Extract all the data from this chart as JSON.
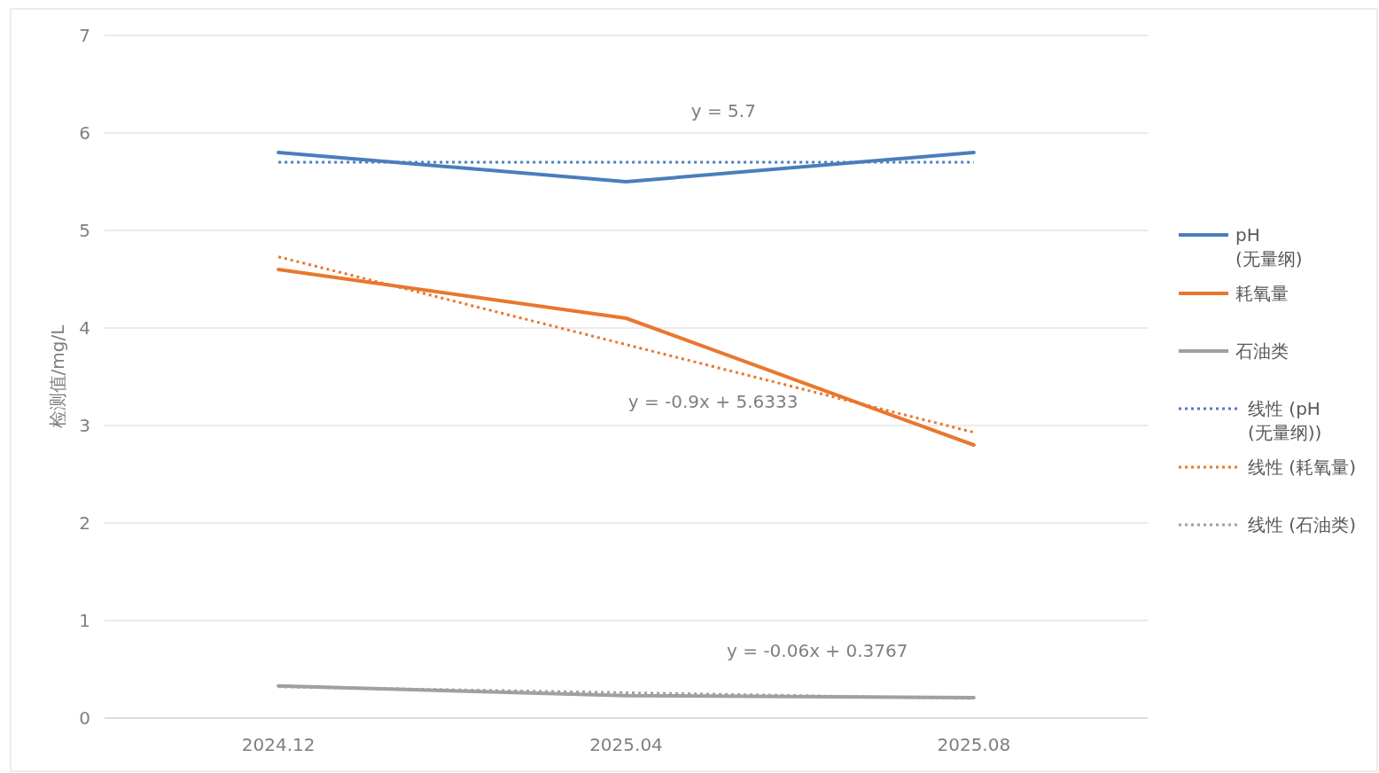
{
  "chart_data": {
    "type": "line",
    "ylabel": "检测值/mg/L",
    "categories": [
      "2024.12",
      "2025.04",
      "2025.08"
    ],
    "series": [
      {
        "name": "pH (无量纲)",
        "color": "#4a7ebb",
        "values": [
          5.8,
          5.5,
          5.8
        ]
      },
      {
        "name": "耗氧量",
        "color": "#e8772e",
        "values": [
          4.6,
          4.1,
          2.8
        ]
      },
      {
        "name": "石油类",
        "color": "#a0a0a0",
        "values": [
          0.33,
          0.23,
          0.21
        ]
      },
      {
        "name": "线性 (pH (无量纲))",
        "color": "#4a7ebb",
        "values": [
          5.7,
          5.7,
          5.7
        ],
        "line_style": "dotted"
      },
      {
        "name": "线性 (耗氧量)",
        "color": "#e8772e",
        "values": [
          4.73,
          3.83,
          2.93
        ],
        "line_style": "dotted"
      },
      {
        "name": "线性 (石油类)",
        "color": "#a0a0a0",
        "values": [
          0.32,
          0.26,
          0.2
        ],
        "line_style": "dotted"
      }
    ],
    "annotations": [
      "y = 5.7",
      "y = -0.9x + 5.6333",
      "y = -0.06x + 0.3767"
    ],
    "ylim": [
      0,
      7
    ],
    "yticks": [
      0,
      1,
      2,
      3,
      4,
      5,
      6,
      7
    ],
    "grid": "y",
    "legend": "right",
    "line_style": "solid"
  }
}
